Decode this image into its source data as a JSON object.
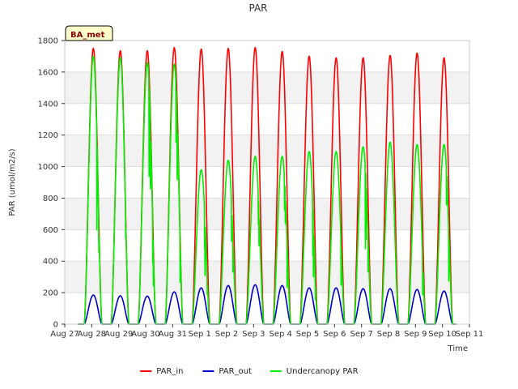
{
  "chart_data": {
    "type": "line",
    "title": "PAR",
    "xlabel": "Time",
    "ylabel": "PAR (umol/m2/s)",
    "site_label": "BA_met",
    "xlim": [
      0,
      15
    ],
    "ylim": [
      0,
      1800
    ],
    "x_ticks": [
      {
        "value": 0,
        "label": "Aug 27"
      },
      {
        "value": 1,
        "label": "Aug 28"
      },
      {
        "value": 2,
        "label": "Aug 29"
      },
      {
        "value": 3,
        "label": "Aug 30"
      },
      {
        "value": 4,
        "label": "Aug 31"
      },
      {
        "value": 5,
        "label": "Sep 1"
      },
      {
        "value": 6,
        "label": "Sep 2"
      },
      {
        "value": 7,
        "label": "Sep 3"
      },
      {
        "value": 8,
        "label": "Sep 4"
      },
      {
        "value": 9,
        "label": "Sep 5"
      },
      {
        "value": 10,
        "label": "Sep 6"
      },
      {
        "value": 11,
        "label": "Sep 7"
      },
      {
        "value": 12,
        "label": "Sep 8"
      },
      {
        "value": 13,
        "label": "Sep 9"
      },
      {
        "value": 14,
        "label": "Sep 10"
      },
      {
        "value": 15,
        "label": "Sep 11"
      }
    ],
    "y_ticks": [
      0,
      200,
      400,
      600,
      800,
      1000,
      1200,
      1400,
      1600,
      1800
    ],
    "grid": true,
    "legend_position": "bottom-center",
    "days": [
      1,
      2,
      3,
      4,
      5,
      6,
      7,
      8,
      9,
      10,
      11,
      12,
      13,
      14
    ],
    "series": [
      {
        "name": "PAR_in",
        "color": "#ff0000",
        "peaks": [
          1750,
          1735,
          1735,
          1755,
          1745,
          1750,
          1755,
          1730,
          1700,
          1690,
          1690,
          1705,
          1720,
          1690
        ]
      },
      {
        "name": "PAR_out",
        "color": "#0000cc",
        "peaks": [
          185,
          180,
          178,
          205,
          230,
          245,
          250,
          245,
          230,
          230,
          225,
          225,
          220,
          210
        ]
      },
      {
        "name": "Undercanopy PAR",
        "color": "#00ee00",
        "peaks": [
          1700,
          1690,
          1660,
          1650,
          980,
          1040,
          1065,
          1065,
          1095,
          1095,
          1125,
          1155,
          1140,
          1140
        ]
      }
    ]
  }
}
